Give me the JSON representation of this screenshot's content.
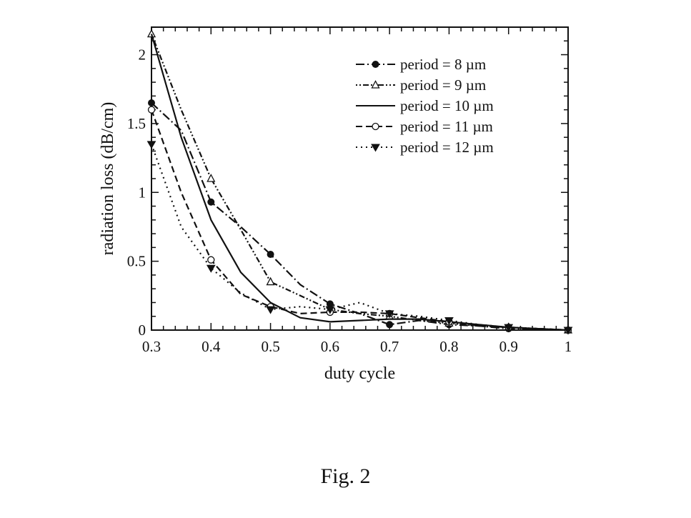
{
  "caption": "Fig. 2",
  "chart_data": {
    "type": "line",
    "title": "",
    "xlabel": "duty cycle",
    "ylabel": "radiation loss (dB/cm)",
    "xlim": [
      0.3,
      1.0
    ],
    "ylim": [
      0,
      2.2
    ],
    "xticks": [
      0.3,
      0.4,
      0.5,
      0.6,
      0.7,
      0.8,
      0.9,
      1
    ],
    "xtick_labels": [
      "0.3",
      "0.4",
      "0.5",
      "0.6",
      "0.7",
      "0.8",
      "0.9",
      "1"
    ],
    "yticks": [
      0,
      0.5,
      1,
      1.5,
      2
    ],
    "ytick_labels": [
      "0",
      "0.5",
      "1",
      "1.5",
      "2"
    ],
    "grid": false,
    "legend_position": "top-right",
    "series": [
      {
        "name": "period = 8 µm",
        "dash": "dashdot",
        "marker": "circle-filled",
        "x": [
          0.3,
          0.35,
          0.4,
          0.45,
          0.5,
          0.55,
          0.6,
          0.65,
          0.7,
          0.75,
          0.8,
          0.85,
          0.9,
          0.95,
          1.0
        ],
        "y": [
          1.65,
          1.45,
          0.93,
          0.75,
          0.55,
          0.33,
          0.19,
          0.12,
          0.04,
          0.07,
          0.04,
          0.03,
          0.01,
          0.01,
          0.0
        ]
      },
      {
        "name": "period = 9 µm",
        "dash": "dotted-dash",
        "marker": "triangle-open",
        "x": [
          0.3,
          0.35,
          0.4,
          0.45,
          0.5,
          0.55,
          0.6,
          0.65,
          0.7,
          0.75,
          0.8,
          0.85,
          0.9,
          0.95,
          1.0
        ],
        "y": [
          2.15,
          1.6,
          1.1,
          0.73,
          0.35,
          0.25,
          0.15,
          0.12,
          0.1,
          0.07,
          0.05,
          0.03,
          0.02,
          0.01,
          0.0
        ]
      },
      {
        "name": "period = 10 µm",
        "dash": "solid",
        "marker": "none",
        "x": [
          0.3,
          0.35,
          0.4,
          0.45,
          0.5,
          0.55,
          0.6,
          0.65,
          0.7,
          0.75,
          0.8,
          0.85,
          0.9,
          0.95,
          1.0
        ],
        "y": [
          2.15,
          1.4,
          0.8,
          0.42,
          0.2,
          0.09,
          0.06,
          0.07,
          0.08,
          0.08,
          0.06,
          0.04,
          0.02,
          0.01,
          0.0
        ]
      },
      {
        "name": "period = 11 µm",
        "dash": "dashed",
        "marker": "circle-open",
        "x": [
          0.3,
          0.35,
          0.4,
          0.45,
          0.5,
          0.55,
          0.6,
          0.65,
          0.7,
          0.75,
          0.8,
          0.85,
          0.9,
          0.95,
          1.0
        ],
        "y": [
          1.6,
          1.0,
          0.51,
          0.26,
          0.17,
          0.12,
          0.13,
          0.13,
          0.12,
          0.09,
          0.06,
          0.03,
          0.02,
          0.01,
          0.0
        ]
      },
      {
        "name": "period = 12 µm",
        "dash": "dotted",
        "marker": "triangle-down-filled",
        "x": [
          0.3,
          0.35,
          0.4,
          0.45,
          0.5,
          0.55,
          0.6,
          0.65,
          0.7,
          0.75,
          0.8,
          0.85,
          0.9,
          0.95,
          1.0
        ],
        "y": [
          1.35,
          0.75,
          0.45,
          0.27,
          0.15,
          0.17,
          0.15,
          0.2,
          0.12,
          0.1,
          0.07,
          0.04,
          0.02,
          0.01,
          0.0
        ]
      }
    ]
  }
}
